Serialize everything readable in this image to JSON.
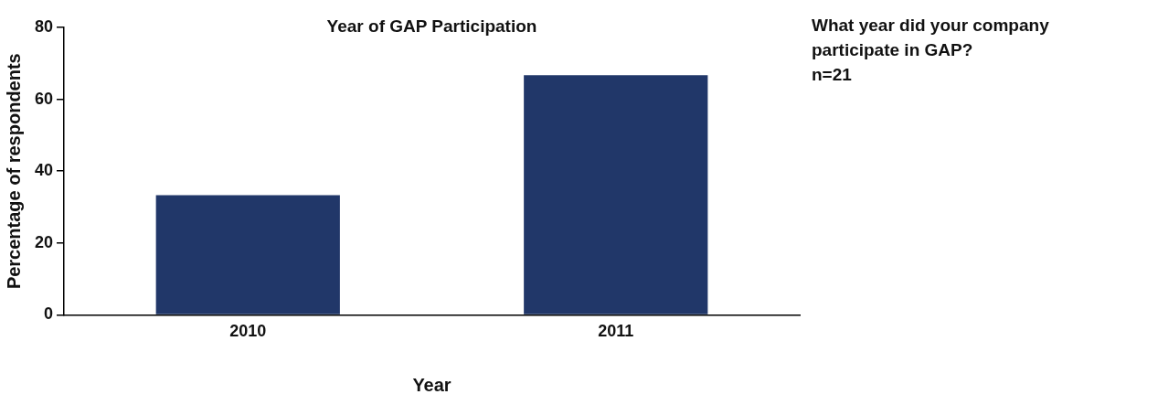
{
  "chart_data": {
    "type": "bar",
    "title": "Year of GAP Participation",
    "xlabel": "Year",
    "ylabel": "Percentage of respondents",
    "categories": [
      "2010",
      "2011"
    ],
    "values": [
      33.3,
      66.7
    ],
    "color": "#213769",
    "ylim": [
      0,
      80
    ],
    "yticks": [
      0,
      20,
      40,
      60,
      80
    ],
    "grid": false,
    "legend": false,
    "annotations": [
      "What year did your company participate in GAP?\nn=21"
    ]
  }
}
